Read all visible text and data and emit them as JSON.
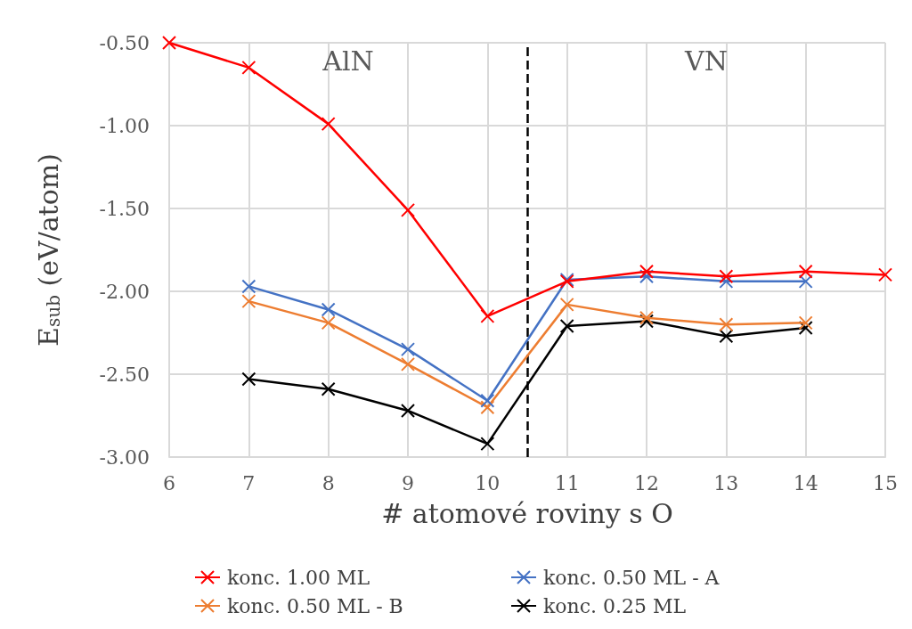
{
  "chart_data": {
    "type": "line",
    "xlabel": "# atomové roviny s O",
    "ylabel": "E$_{sub}$ (eV/atom)",
    "x": [
      6,
      7,
      8,
      9,
      10,
      11,
      12,
      13,
      14,
      15
    ],
    "series": [
      {
        "name": "konc. 1.00 ML",
        "color": "#ff0000",
        "values": [
          -0.5,
          -0.65,
          -0.99,
          -1.51,
          -2.15,
          -1.94,
          -1.88,
          -1.91,
          -1.88,
          -1.9
        ]
      },
      {
        "name": "konc. 0.50 ML - A",
        "color": "#4472c4",
        "values": [
          null,
          -1.97,
          -2.11,
          -2.35,
          -2.66,
          -1.93,
          -1.91,
          -1.94,
          -1.94,
          null
        ]
      },
      {
        "name": "konc. 0.50 ML - B",
        "color": "#ed7d31",
        "values": [
          null,
          -2.06,
          -2.19,
          -2.44,
          -2.7,
          -2.08,
          -2.16,
          -2.2,
          -2.19,
          null
        ]
      },
      {
        "name": "konc. 0.25 ML",
        "color": "#000000",
        "values": [
          null,
          -2.53,
          -2.59,
          -2.72,
          -2.92,
          -2.21,
          -2.18,
          -2.27,
          -2.22,
          null
        ]
      }
    ],
    "xlim": [
      6,
      15
    ],
    "xticks": [
      6,
      7,
      8,
      9,
      10,
      11,
      12,
      13,
      14,
      15
    ],
    "ylim": [
      -3.0,
      -0.5
    ],
    "yticks": [
      {
        "value": -3.0,
        "label": "-3.00"
      },
      {
        "value": -2.5,
        "label": "-2.50"
      },
      {
        "value": -2.0,
        "label": "-2.00"
      },
      {
        "value": -1.5,
        "label": "-1.50"
      },
      {
        "value": -1.0,
        "label": "-1.00"
      },
      {
        "value": -0.5,
        "label": "-0.50"
      }
    ],
    "ref_lines": [
      {
        "axis": "x",
        "value": 10.5,
        "color": "#000000",
        "line_style": "dashed"
      }
    ],
    "annotations": [
      "AlN",
      "VN"
    ],
    "grid": true,
    "legend": "bottom",
    "marker": "cross",
    "line_style": "solid"
  }
}
